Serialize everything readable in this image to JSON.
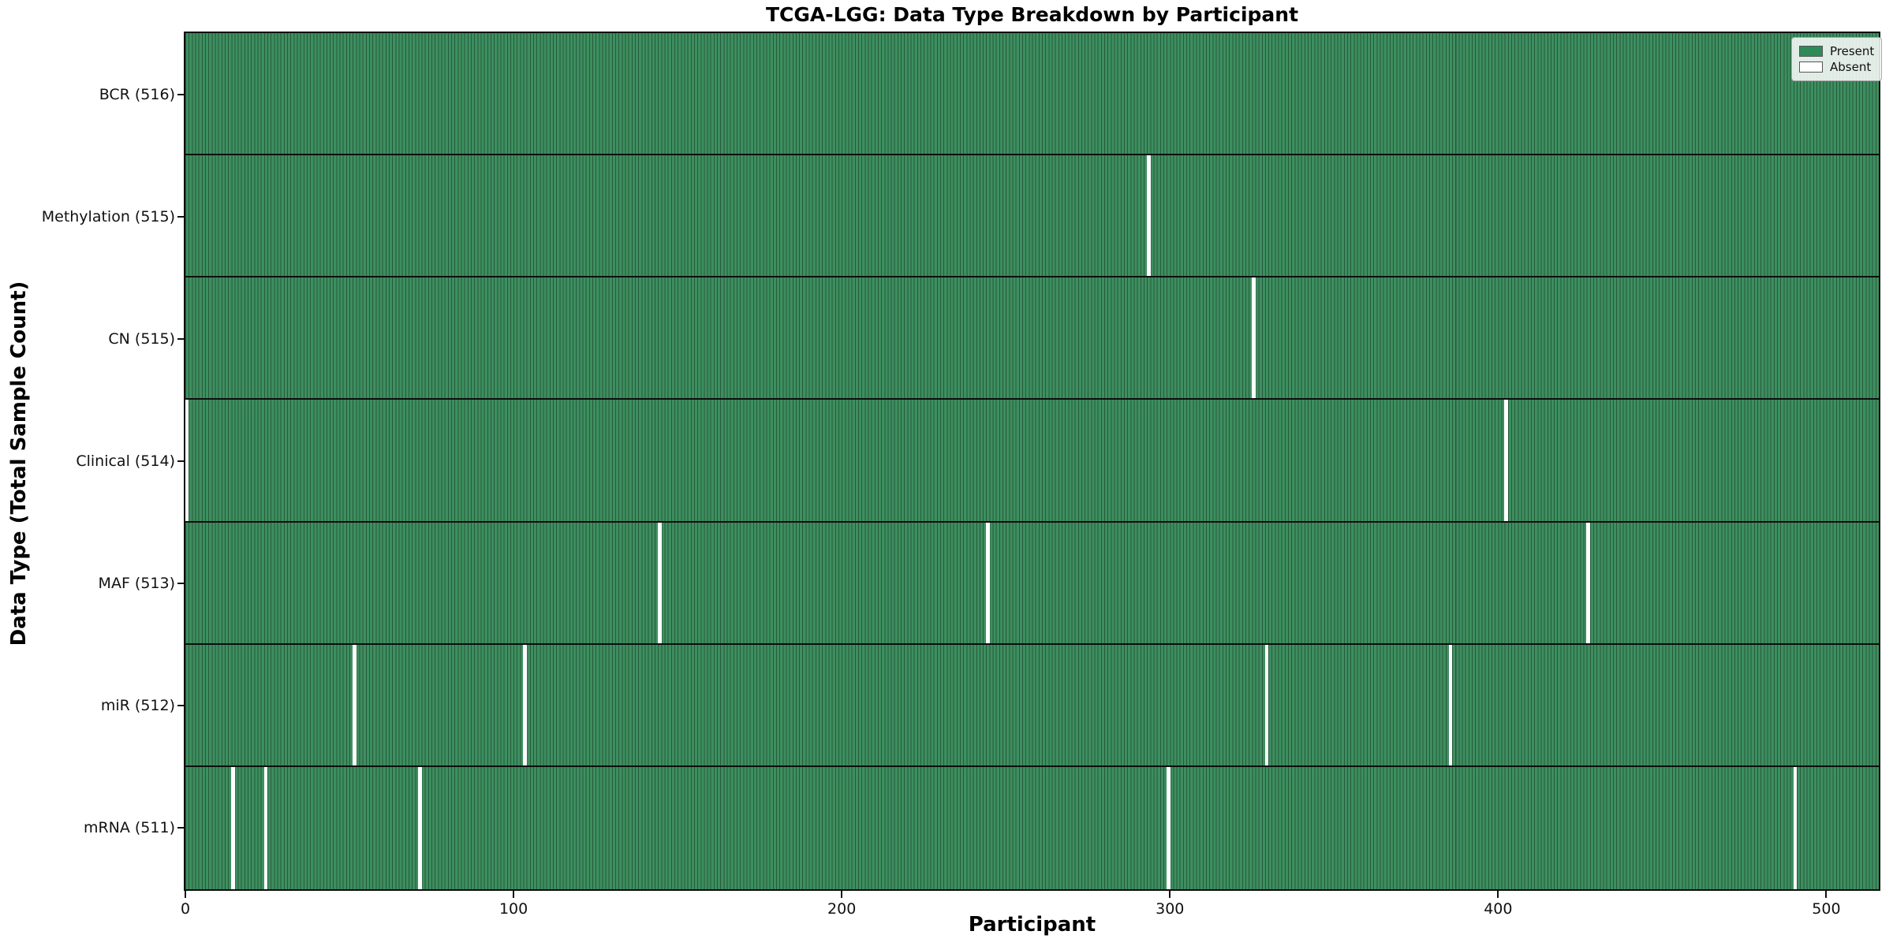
{
  "chart_data": {
    "type": "heatmap",
    "title": "TCGA-LGG: Data Type Breakdown by Participant",
    "xlabel": "Participant",
    "ylabel": "Data Type (Total Sample Count)",
    "x_ticks": [
      0,
      100,
      200,
      300,
      400,
      500
    ],
    "xlim": [
      0,
      516
    ],
    "n_participants": 516,
    "grid": false,
    "legend": {
      "position": "upper-right",
      "entries": [
        {
          "label": "Present",
          "color": "#2e8b57"
        },
        {
          "label": "Absent",
          "color": "#ffffff"
        }
      ]
    },
    "rows": [
      {
        "data_type": "BCR",
        "total": 516,
        "label": "BCR (516)",
        "absent_participants": []
      },
      {
        "data_type": "Methylation",
        "total": 515,
        "label": "Methylation (515)",
        "absent_participants": [
          293
        ]
      },
      {
        "data_type": "CN",
        "total": 515,
        "label": "CN (515)",
        "absent_participants": [
          325
        ]
      },
      {
        "data_type": "Clinical",
        "total": 514,
        "label": "Clinical (514)",
        "absent_participants": [
          0,
          402
        ]
      },
      {
        "data_type": "MAF",
        "total": 513,
        "label": "MAF (513)",
        "absent_participants": [
          144,
          244,
          427
        ]
      },
      {
        "data_type": "miR",
        "total": 512,
        "label": "miR (512)",
        "absent_participants": [
          51,
          103,
          329,
          385
        ]
      },
      {
        "data_type": "mRNA",
        "total": 511,
        "label": "mRNA (511)",
        "absent_participants": [
          14,
          24,
          71,
          299,
          490
        ]
      }
    ],
    "colors": {
      "present_fill": "#3d8f5f",
      "cell_edge": "#27593d",
      "absent": "#ffffff",
      "row_divider": "#0e0e0e",
      "legend_present": "#2e8b57"
    }
  }
}
